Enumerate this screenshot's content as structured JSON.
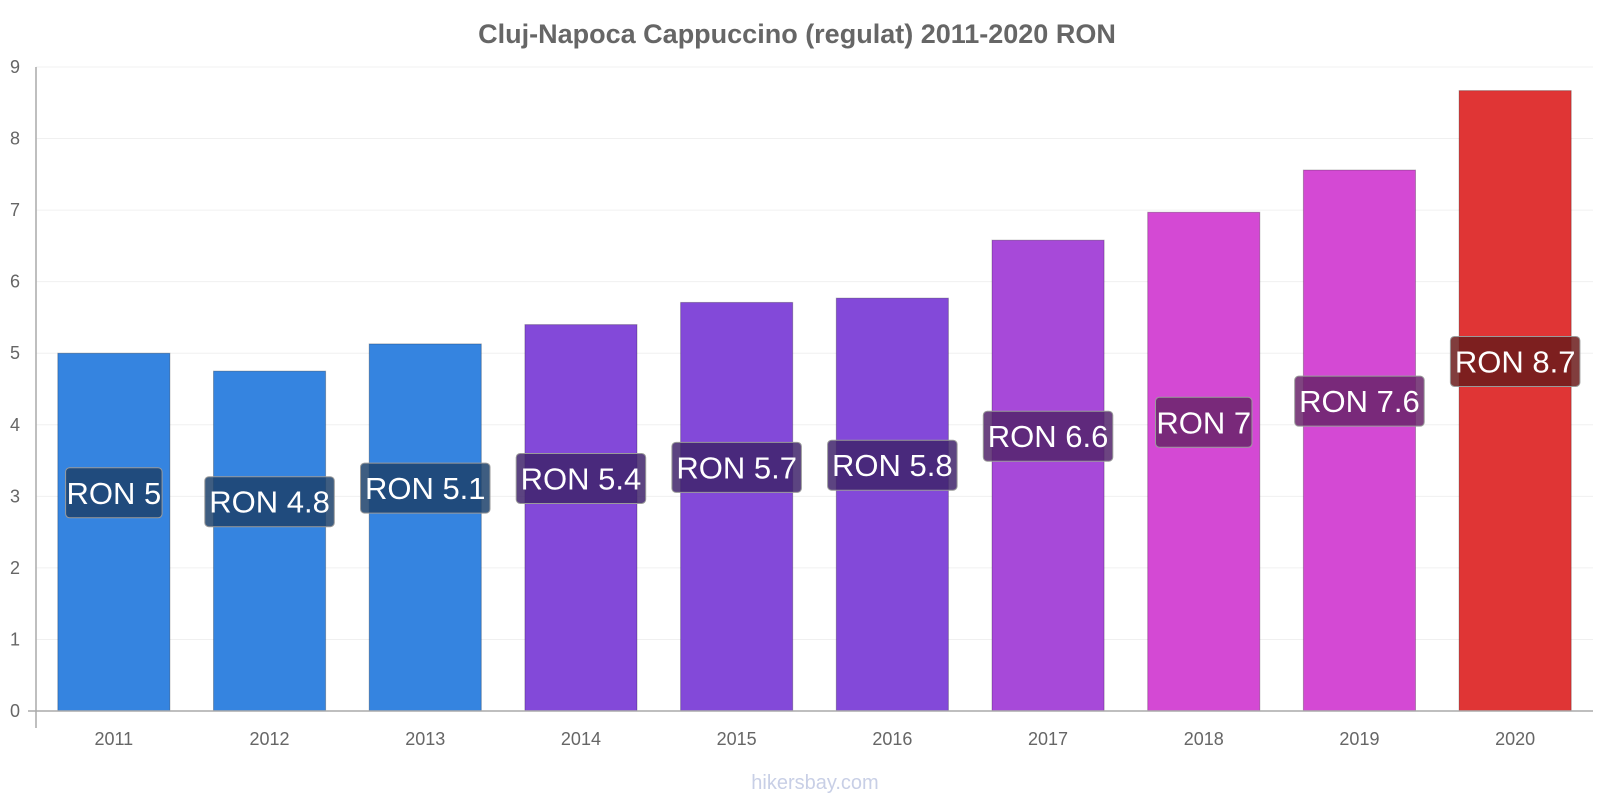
{
  "chart_data": {
    "type": "bar",
    "title": "Cluj-Napoca Cappuccino (regulat) 2011-2020 RON",
    "xlabel": "",
    "ylabel": "",
    "categories": [
      "2011",
      "2012",
      "2013",
      "2014",
      "2015",
      "2016",
      "2017",
      "2018",
      "2019",
      "2020"
    ],
    "values": [
      5.0,
      4.75,
      5.13,
      5.4,
      5.71,
      5.77,
      6.58,
      6.97,
      7.56,
      8.67
    ],
    "data_labels": [
      "RON 5",
      "RON 4.8",
      "RON 5.1",
      "RON 5.4",
      "RON 5.7",
      "RON 5.8",
      "RON 6.6",
      "RON 7",
      "RON 7.6",
      "RON 8.7"
    ],
    "bar_colors": [
      "#3584e0",
      "#3584e0",
      "#3584e0",
      "#8349d9",
      "#8349d9",
      "#8349d9",
      "#a749d9",
      "#d449d4",
      "#d449d4",
      "#e03535"
    ],
    "label_bg_colors": [
      "#1c416b",
      "#1c416b",
      "#1c416b",
      "#40236b",
      "#40236b",
      "#40236b",
      "#52236b",
      "#68236a",
      "#68236a",
      "#6b1b1b"
    ],
    "ylim": [
      0,
      9
    ],
    "yticks": [
      "0",
      "1",
      "2",
      "3",
      "4",
      "5",
      "6",
      "7",
      "8",
      "9"
    ],
    "grid": true,
    "legend": "none"
  },
  "footer": {
    "watermark": "hikersbay.com"
  }
}
